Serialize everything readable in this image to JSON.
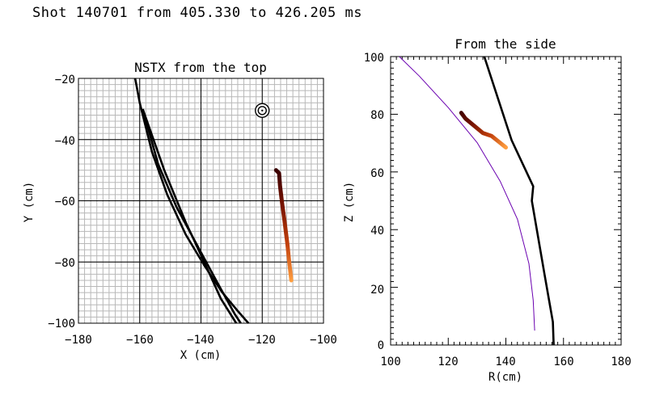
{
  "page_title": "Shot 140701 from 405.330 to 426.205 ms",
  "chart_data": [
    {
      "type": "line",
      "title": "NSTX from the top",
      "xlabel": "X (cm)",
      "ylabel": "Y (cm)",
      "xlim": [
        -180,
        -100
      ],
      "ylim": [
        -100,
        -20
      ],
      "xticks": [
        -180,
        -160,
        -140,
        -120,
        -100
      ],
      "yticks": [
        -100,
        -80,
        -60,
        -40,
        -20
      ],
      "tick_labels_x": [
        "−180",
        "−160",
        "−140",
        "−120",
        "−100"
      ],
      "tick_labels_y": [
        "−100",
        "−80",
        "−60",
        "−40",
        "−20"
      ],
      "fine_grid_step": 2,
      "major_grid_step": 20,
      "marker": {
        "name": "target-marker",
        "x": -120,
        "y": -30.5
      },
      "series": [
        {
          "name": "vessel-outline",
          "color": "#000000",
          "x": [
            -161.5,
            -160,
            -156,
            -151,
            -145,
            -139,
            -133,
            -128,
            -124.5
          ],
          "y": [
            -20,
            -28,
            -44,
            -58,
            -71,
            -81,
            -90,
            -96,
            -100
          ]
        },
        {
          "name": "chord-left",
          "color": "#000000",
          "x": [
            -159,
            -154,
            -148,
            -141,
            -134.5,
            -129,
            -127
          ],
          "y": [
            -30,
            -48,
            -62,
            -75,
            -87,
            -97,
            -100
          ]
        },
        {
          "name": "chord-right",
          "color": "#000000",
          "x": [
            -159,
            -152,
            -145,
            -138.5,
            -133.5,
            -128.5
          ],
          "y": [
            -30,
            -50,
            -67,
            -81,
            -92,
            -100
          ]
        },
        {
          "name": "filament-trajectory",
          "gradient": [
            "#3a0000",
            "#7a1500",
            "#c2400c",
            "#ff9f40"
          ],
          "x": [
            -115.5,
            -114.5,
            -114.2,
            -113.5,
            -112.8,
            -112.3,
            -111.8,
            -111.3,
            -110.5
          ],
          "y": [
            -50,
            -51,
            -55,
            -61,
            -66,
            -70,
            -74,
            -79,
            -86
          ]
        }
      ]
    },
    {
      "type": "line",
      "title": "From the side",
      "xlabel": "R(cm)",
      "ylabel": "Z (cm)",
      "xlim": [
        100,
        180
      ],
      "ylim": [
        0,
        100
      ],
      "xticks": [
        100,
        120,
        140,
        160,
        180
      ],
      "yticks": [
        0,
        20,
        40,
        60,
        80,
        100
      ],
      "tick_labels_x": [
        "100",
        "120",
        "140",
        "160",
        "180"
      ],
      "tick_labels_y": [
        "0",
        "20",
        "40",
        "60",
        "80",
        "100"
      ],
      "series": [
        {
          "name": "separatrix-arc",
          "color": "#6a00b0",
          "x": [
            103,
            110,
            120,
            130,
            138,
            144,
            148,
            149.5,
            150
          ],
          "y": [
            100,
            93.2,
            82.3,
            70.2,
            56.8,
            43.6,
            28.2,
            15.5,
            5
          ]
        },
        {
          "name": "limiter-outline",
          "color": "#000000",
          "x": [
            132.5,
            142,
            149.5,
            149,
            153.5,
            156.3,
            156.6
          ],
          "y": [
            100,
            71,
            55,
            50,
            24,
            8,
            0
          ]
        },
        {
          "name": "filament-trajectory",
          "gradient": [
            "#3a0000",
            "#7a1500",
            "#c2400c",
            "#ff9f40"
          ],
          "x": [
            124.5,
            126,
            129,
            132,
            135,
            137.5,
            140
          ],
          "y": [
            80.5,
            78.5,
            76,
            73.5,
            72.5,
            70.5,
            68.5
          ]
        }
      ]
    }
  ]
}
